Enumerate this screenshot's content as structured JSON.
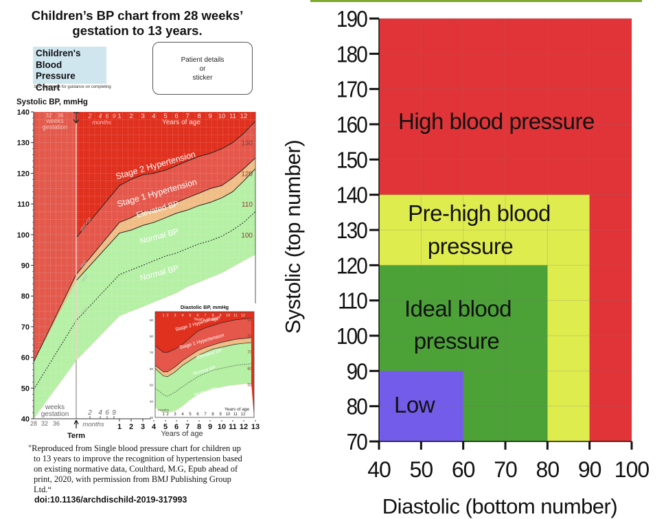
{
  "header": {
    "title_line1": "Children’s BP chart from 28 weeks’",
    "title_line2": "gestation to 13 years."
  },
  "form": {
    "chart_title_lines": [
      "Children's",
      "Blood Pressure",
      "Chart"
    ],
    "guidance": "See over page for guidance on completing",
    "patient_box_lines": [
      "Patient details",
      "or",
      "sticker"
    ],
    "systolic_label": "Systolic BP, mmHg"
  },
  "citation": {
    "lines": [
      "\"Reproduced from Single blood pressure chart for children up",
      "to 13 years to improve the recognition of hypertension based",
      "on existing normative data, Coulthard, M.G, Epub ahead of",
      "print, 2020, with permission from BMJ Publishing Group",
      "Ltd.“"
    ],
    "doi": "doi:10.1136/archdischild-2019-317993"
  },
  "chart_data": [
    {
      "type": "area",
      "title": "Children's Blood Pressure Chart",
      "ylabel": "Systolic BP, mmHg",
      "xlabel": "Years of age",
      "ylim": [
        40,
        140
      ],
      "yticks": [
        40,
        50,
        60,
        70,
        80,
        90,
        100,
        110,
        120,
        130,
        140
      ],
      "right_yticks": [
        100,
        110,
        120,
        130
      ],
      "grid": true,
      "x_sections": {
        "gestation_weeks_ticks": [
          "28",
          "32",
          "36"
        ],
        "term_label": "Term",
        "months_ticks": [
          "2",
          "4",
          "6",
          "9"
        ],
        "months_label": "months",
        "years_ticks": [
          "1",
          "2",
          "3",
          "4",
          "5",
          "6",
          "7",
          "8",
          "9",
          "10",
          "11",
          "12",
          "13"
        ],
        "top_years_ticks": [
          "1",
          "2",
          "3",
          "4",
          "5",
          "6",
          "7",
          "8",
          "9",
          "10",
          "11",
          "12"
        ],
        "top_weeks_ticks": [
          "32",
          "36"
        ],
        "weeks_label": "weeks gestation",
        "years_label": "Years of age"
      },
      "x_points": [
        "28wk",
        "term",
        "1",
        "2",
        "3",
        "4",
        "5",
        "6",
        "7",
        "8",
        "9",
        "10",
        "11",
        "12",
        "13"
      ],
      "series": [
        {
          "name": "95C+12",
          "values": [
            null,
            99,
            116,
            118,
            119.5,
            120,
            121,
            122.5,
            124,
            125.5,
            126.5,
            128,
            130,
            133,
            137
          ]
        },
        {
          "name": "95C",
          "values": [
            58.5,
            87,
            104,
            105.5,
            107.5,
            108,
            109,
            110.5,
            112,
            113.5,
            115,
            116,
            118.5,
            121.5,
            125
          ]
        },
        {
          "name": "90C",
          "values": [
            58.5,
            85,
            100.5,
            101.5,
            103,
            104,
            105.5,
            107,
            108,
            109.5,
            110.5,
            112,
            114,
            117.5,
            121.5
          ]
        },
        {
          "name": "50C",
          "values": [
            49.5,
            72,
            87,
            88.5,
            90,
            91.5,
            93,
            94,
            95.5,
            97,
            98,
            99.5,
            101.5,
            104,
            107.5
          ]
        },
        {
          "name": "lower normal",
          "values": [
            40,
            59,
            73.5,
            75,
            76.5,
            78,
            79.5,
            81,
            83,
            84.5,
            86,
            87.5,
            89.5,
            91.5,
            93.5
          ]
        }
      ],
      "band_labels": [
        "Stage 2 Hypertension",
        "Stage 1 Hypertension",
        "Elevated BP",
        "Normal BP",
        "Normal BP"
      ],
      "curve_labels": [
        "95C+12",
        "95C",
        "90C",
        "50C"
      ],
      "colors": {
        "stage2": "#e0301e",
        "stage1": "#e5574a",
        "elevated": "#f0bd86",
        "normal": "#b5f0a5",
        "preterm": "#e35a4c"
      },
      "inset": {
        "title": "Diastolic BP, mmHg",
        "ylim": [
          30,
          95
        ],
        "yticks": [
          30,
          40,
          50,
          60,
          70,
          80,
          90
        ],
        "right_yticks": [
          50,
          60,
          70,
          80,
          90
        ],
        "years_ticks": [
          "1",
          "2",
          "3",
          "4",
          "5",
          "6",
          "7",
          "8",
          "9",
          "10",
          "11",
          "12"
        ],
        "months_ticks": [
          "2",
          "4",
          "6",
          "9"
        ],
        "months_label": "months",
        "years_label": "Years of age",
        "x_points": [
          "term",
          "1",
          "2",
          "3",
          "4",
          "5",
          "6",
          "7",
          "8",
          "9",
          "10",
          "11",
          "12",
          "13"
        ],
        "series": [
          {
            "name": "95C+12",
            "values": [
              74,
              70,
              70,
              72,
              75,
              79,
              83,
              85,
              86.5,
              88,
              89,
              90,
              90.5,
              91
            ]
          },
          {
            "name": "95C",
            "values": [
              62,
              58,
              58,
              61,
              65,
              68,
              71,
              73,
              74.5,
              76,
              77,
              78,
              78.5,
              79
            ]
          },
          {
            "name": "90C",
            "values": [
              60,
              55.5,
              55,
              58,
              62,
              65,
              68,
              70,
              72,
              73,
              74,
              75,
              75.5,
              76
            ]
          },
          {
            "name": "50C",
            "values": [
              48,
              44,
              43,
              45.5,
              49,
              52,
              55,
              57,
              59,
              60,
              61,
              62,
              62.5,
              63
            ]
          },
          {
            "name": "lower normal",
            "values": [
              36,
              33,
              33,
              34,
              37,
              41,
              44,
              46,
              47.5,
              48.5,
              49.5,
              50,
              50.5,
              51
            ]
          }
        ],
        "band_labels": [
          "Stage 2 Hypertension",
          "Stage 1 Hypertension",
          "Elevated BP",
          "Normal BP",
          "Normal BP"
        ]
      }
    },
    {
      "type": "heatmap",
      "title": "",
      "xlabel": "Diastolic (bottom number)",
      "ylabel": "Systolic (top number)",
      "xlim": [
        40,
        100
      ],
      "ylim": [
        70,
        190
      ],
      "xticks": [
        40,
        50,
        60,
        70,
        80,
        90,
        100
      ],
      "yticks": [
        70,
        80,
        90,
        100,
        110,
        120,
        130,
        140,
        150,
        160,
        170,
        180,
        190
      ],
      "grid": true,
      "regions": [
        {
          "name": "High blood pressure",
          "label_lines": [
            "High blood pressure"
          ],
          "x": [
            40,
            100
          ],
          "y": [
            70,
            190
          ],
          "color": "#e13438"
        },
        {
          "name": "Pre-high blood pressure",
          "label_lines": [
            "Pre-high blood",
            "pressure"
          ],
          "x": [
            40,
            90
          ],
          "y": [
            70,
            140
          ],
          "color": "#dfec4e"
        },
        {
          "name": "Ideal blood pressure",
          "label_lines": [
            "Ideal blood",
            "pressure"
          ],
          "x": [
            40,
            80
          ],
          "y": [
            70,
            120
          ],
          "color": "#4ca137"
        },
        {
          "name": "Low",
          "label_lines": [
            "Low"
          ],
          "x": [
            40,
            60
          ],
          "y": [
            70,
            90
          ],
          "color": "#735cea"
        }
      ],
      "accent_bar_color": "#7fa82f"
    }
  ]
}
